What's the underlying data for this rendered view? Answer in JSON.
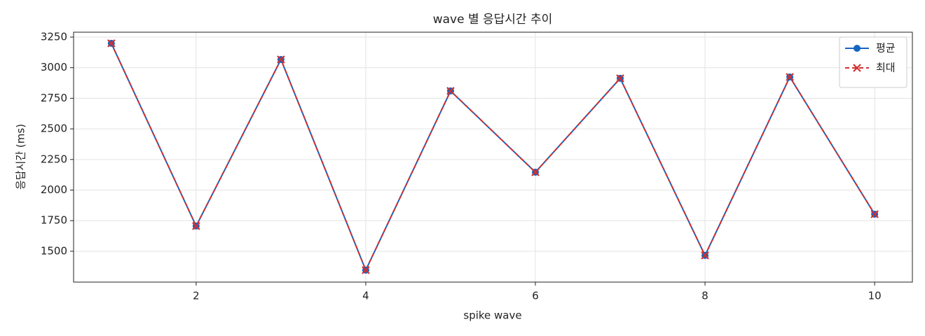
{
  "chart_data": {
    "type": "line",
    "title": "wave 별 응답시간 추이",
    "x_label": "spike wave",
    "y_label": "응답시간 (ms)",
    "x": [
      1,
      2,
      3,
      4,
      5,
      6,
      7,
      8,
      9,
      10
    ],
    "series": [
      {
        "name": "평균",
        "color": "#1565c0",
        "marker": "o",
        "dash": "solid",
        "values": [
          3199,
          1706,
          3067,
          1346,
          2810,
          2146,
          2913,
          1466,
          2924,
          1803
        ]
      },
      {
        "name": "최대",
        "color": "#d32f2f",
        "marker": "x",
        "dash": "dashed",
        "values": [
          3199,
          1706,
          3067,
          1346,
          2810,
          2146,
          2913,
          1466,
          2924,
          1803
        ]
      }
    ],
    "xlim": [
      0.555,
      10.445
    ],
    "ylim": [
      1248,
      3290
    ],
    "xticks": [
      2,
      4,
      6,
      8,
      10
    ],
    "yticks": [
      1500,
      1750,
      2000,
      2250,
      2500,
      2750,
      3000,
      3250
    ],
    "grid": true,
    "legend": "upper right"
  }
}
